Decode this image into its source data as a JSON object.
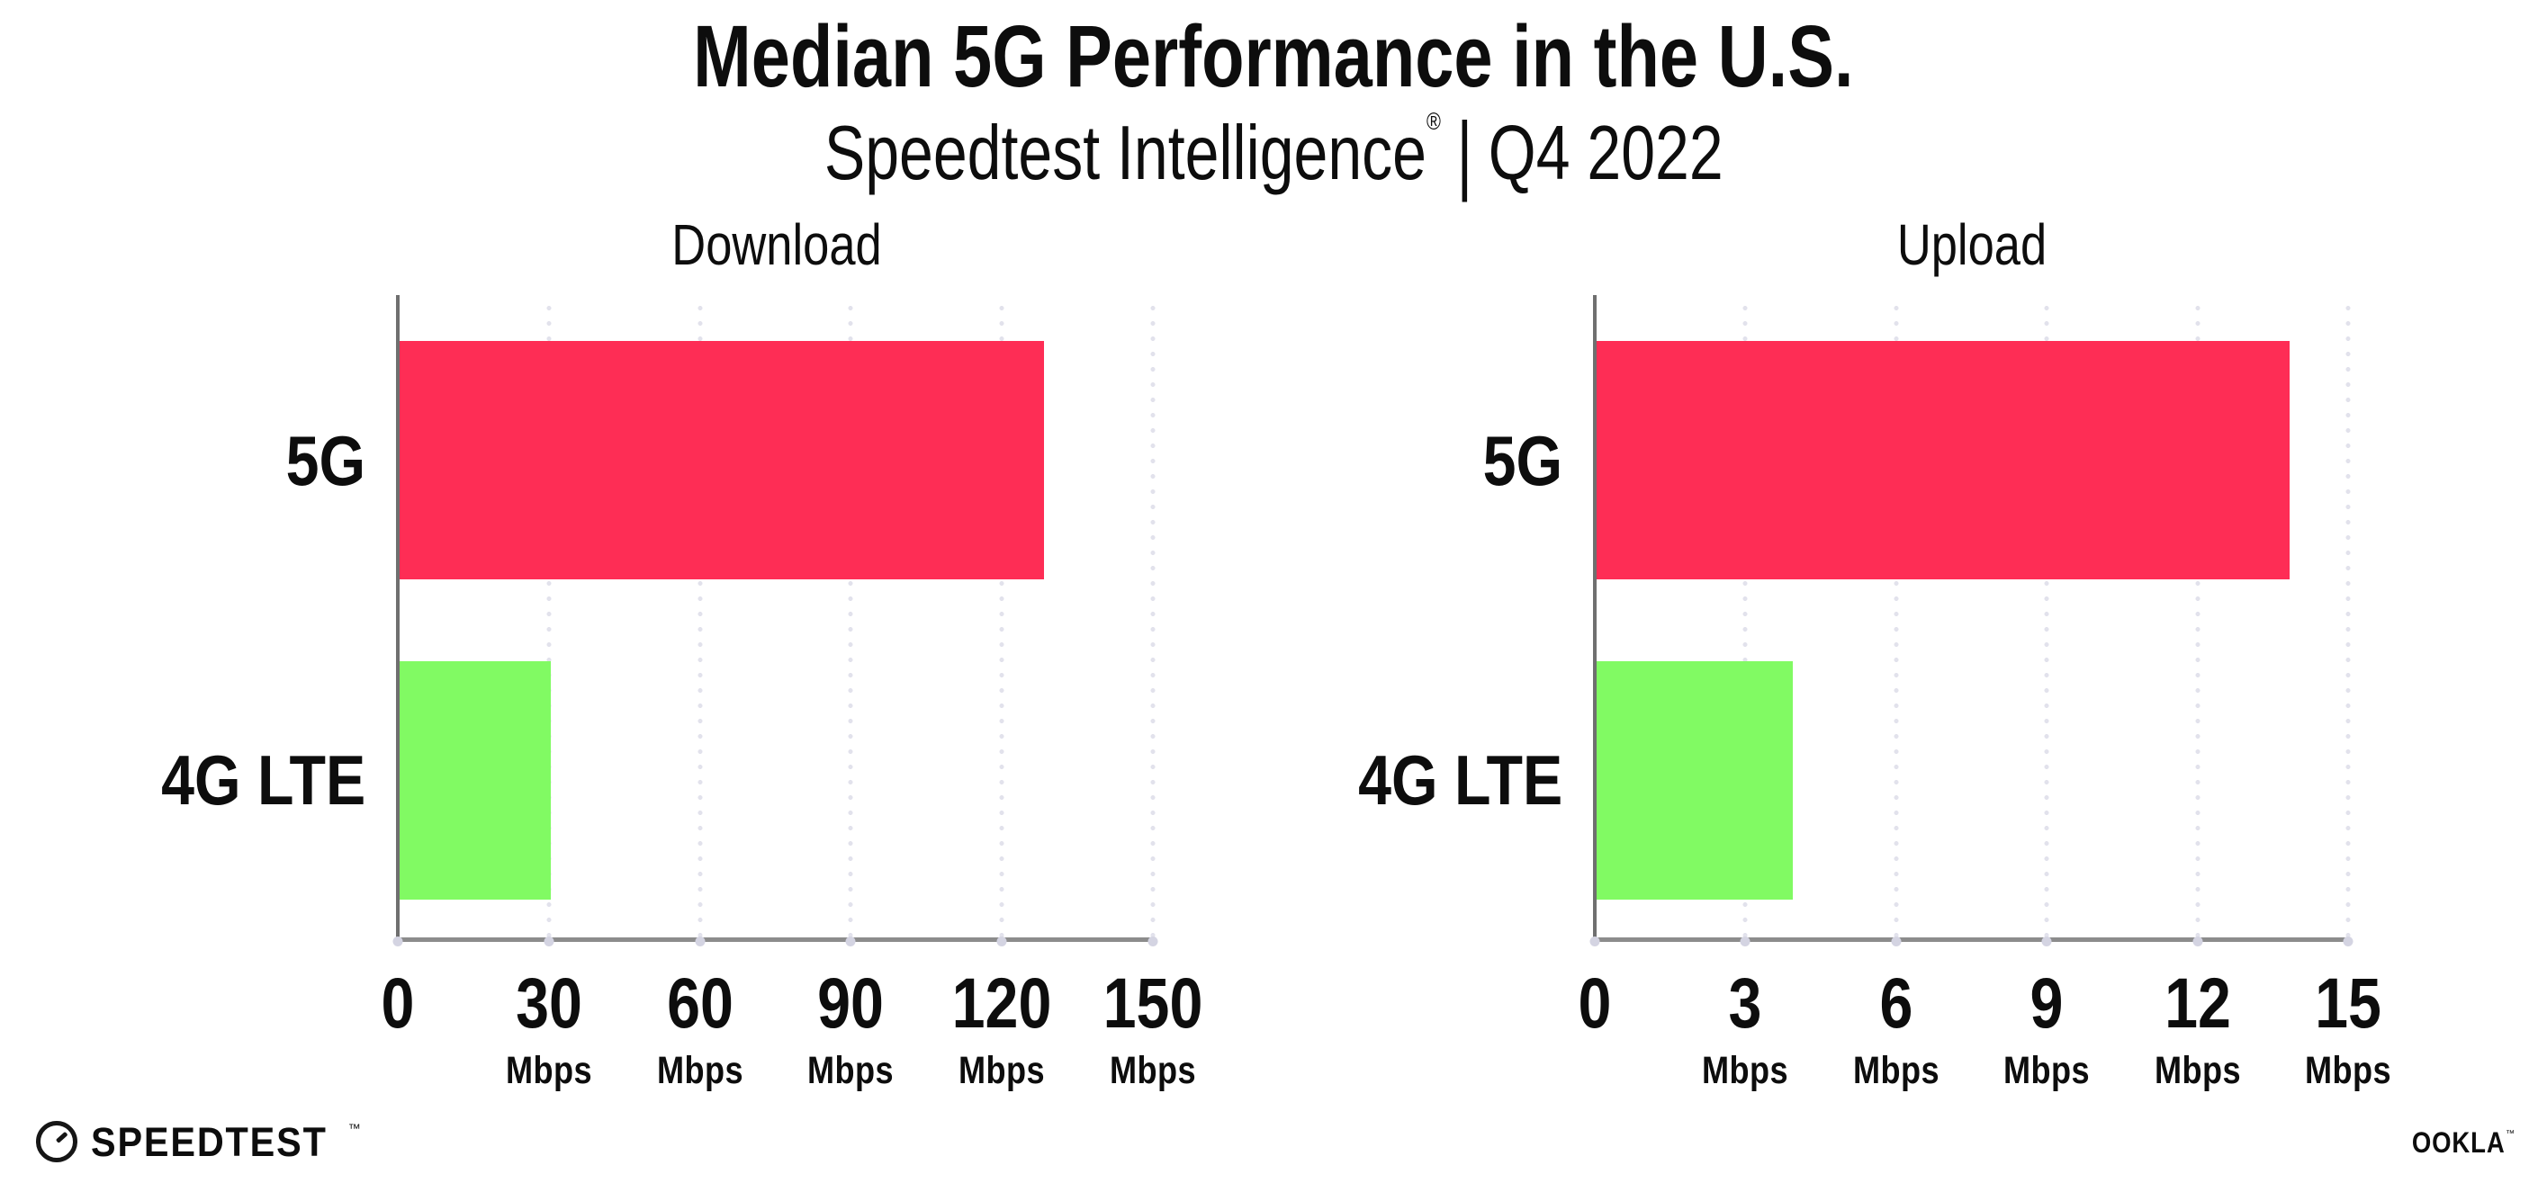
{
  "header": {
    "title": "Median 5G Performance in the U.S.",
    "subtitle_brand": "Speedtest Intelligence",
    "subtitle_reg": "®",
    "subtitle_sep": "|",
    "subtitle_period": "Q4 2022"
  },
  "footer": {
    "speedtest_label": "SPEEDTEST",
    "speedtest_tm": "™",
    "ookla_label": "OOKLA",
    "ookla_tm": "™"
  },
  "colors": {
    "bar_5g": "#FE2D55",
    "bar_4g_lte": "#81FA63",
    "x_axis": "#8C8C8C",
    "y_axis": "#6F6F6F",
    "gridline": "#E2E2EC",
    "tick_dot": "#D4D4E2",
    "text": "#0D0D0D"
  },
  "chart_data": [
    {
      "type": "bar",
      "orientation": "horizontal",
      "title": "Download",
      "categories": [
        "5G",
        "4G LTE"
      ],
      "values": [
        128,
        30
      ],
      "value_unit": "Mbps",
      "xlim": [
        0,
        150
      ],
      "xticks": [
        {
          "value": 0,
          "label": "0",
          "unit": ""
        },
        {
          "value": 30,
          "label": "30",
          "unit": "Mbps"
        },
        {
          "value": 60,
          "label": "60",
          "unit": "Mbps"
        },
        {
          "value": 90,
          "label": "90",
          "unit": "Mbps"
        },
        {
          "value": 120,
          "label": "120",
          "unit": "Mbps"
        },
        {
          "value": 150,
          "label": "150",
          "unit": "Mbps"
        }
      ],
      "bar_colors": [
        "#FE2D55",
        "#81FA63"
      ],
      "grid": "dotted-vertical",
      "legend": "none"
    },
    {
      "type": "bar",
      "orientation": "horizontal",
      "title": "Upload",
      "categories": [
        "5G",
        "4G LTE"
      ],
      "values": [
        13.8,
        3.9
      ],
      "value_unit": "Mbps",
      "xlim": [
        0,
        15
      ],
      "xticks": [
        {
          "value": 0,
          "label": "0",
          "unit": ""
        },
        {
          "value": 3,
          "label": "3",
          "unit": "Mbps"
        },
        {
          "value": 6,
          "label": "6",
          "unit": "Mbps"
        },
        {
          "value": 9,
          "label": "9",
          "unit": "Mbps"
        },
        {
          "value": 12,
          "label": "12",
          "unit": "Mbps"
        },
        {
          "value": 15,
          "label": "15",
          "unit": "Mbps"
        }
      ],
      "bar_colors": [
        "#FE2D55",
        "#81FA63"
      ],
      "grid": "dotted-vertical",
      "legend": "none"
    }
  ]
}
